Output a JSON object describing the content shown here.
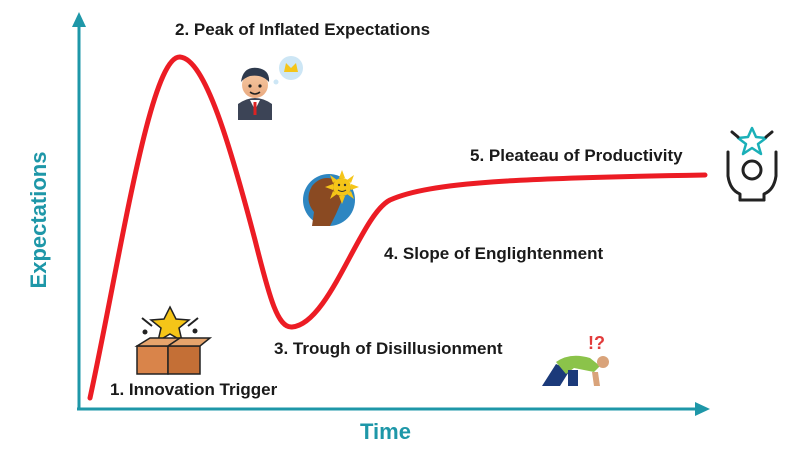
{
  "diagram": {
    "stages": [
      {
        "label": "1. Innovation Trigger"
      },
      {
        "label": "2. Peak of Inflated Expectations"
      },
      {
        "label": "3. Trough of Disillusionment"
      },
      {
        "label": "4. Slope of Englightenment"
      },
      {
        "label": "5. Pleateau of Productivity"
      }
    ],
    "xlabel": "Time",
    "ylabel": "Expectations",
    "trough_icon_text": "!?",
    "colors": {
      "curve": "#ec1c24",
      "axes": "#1e97a8",
      "text": "#1a1a1a",
      "accent": "#1e97a8"
    },
    "icons": [
      "gift-box-star-icon",
      "businessman-thought-icon",
      "head-sun-idea-icon",
      "kneeling-person-icon",
      "raised-hands-star-icon"
    ]
  }
}
